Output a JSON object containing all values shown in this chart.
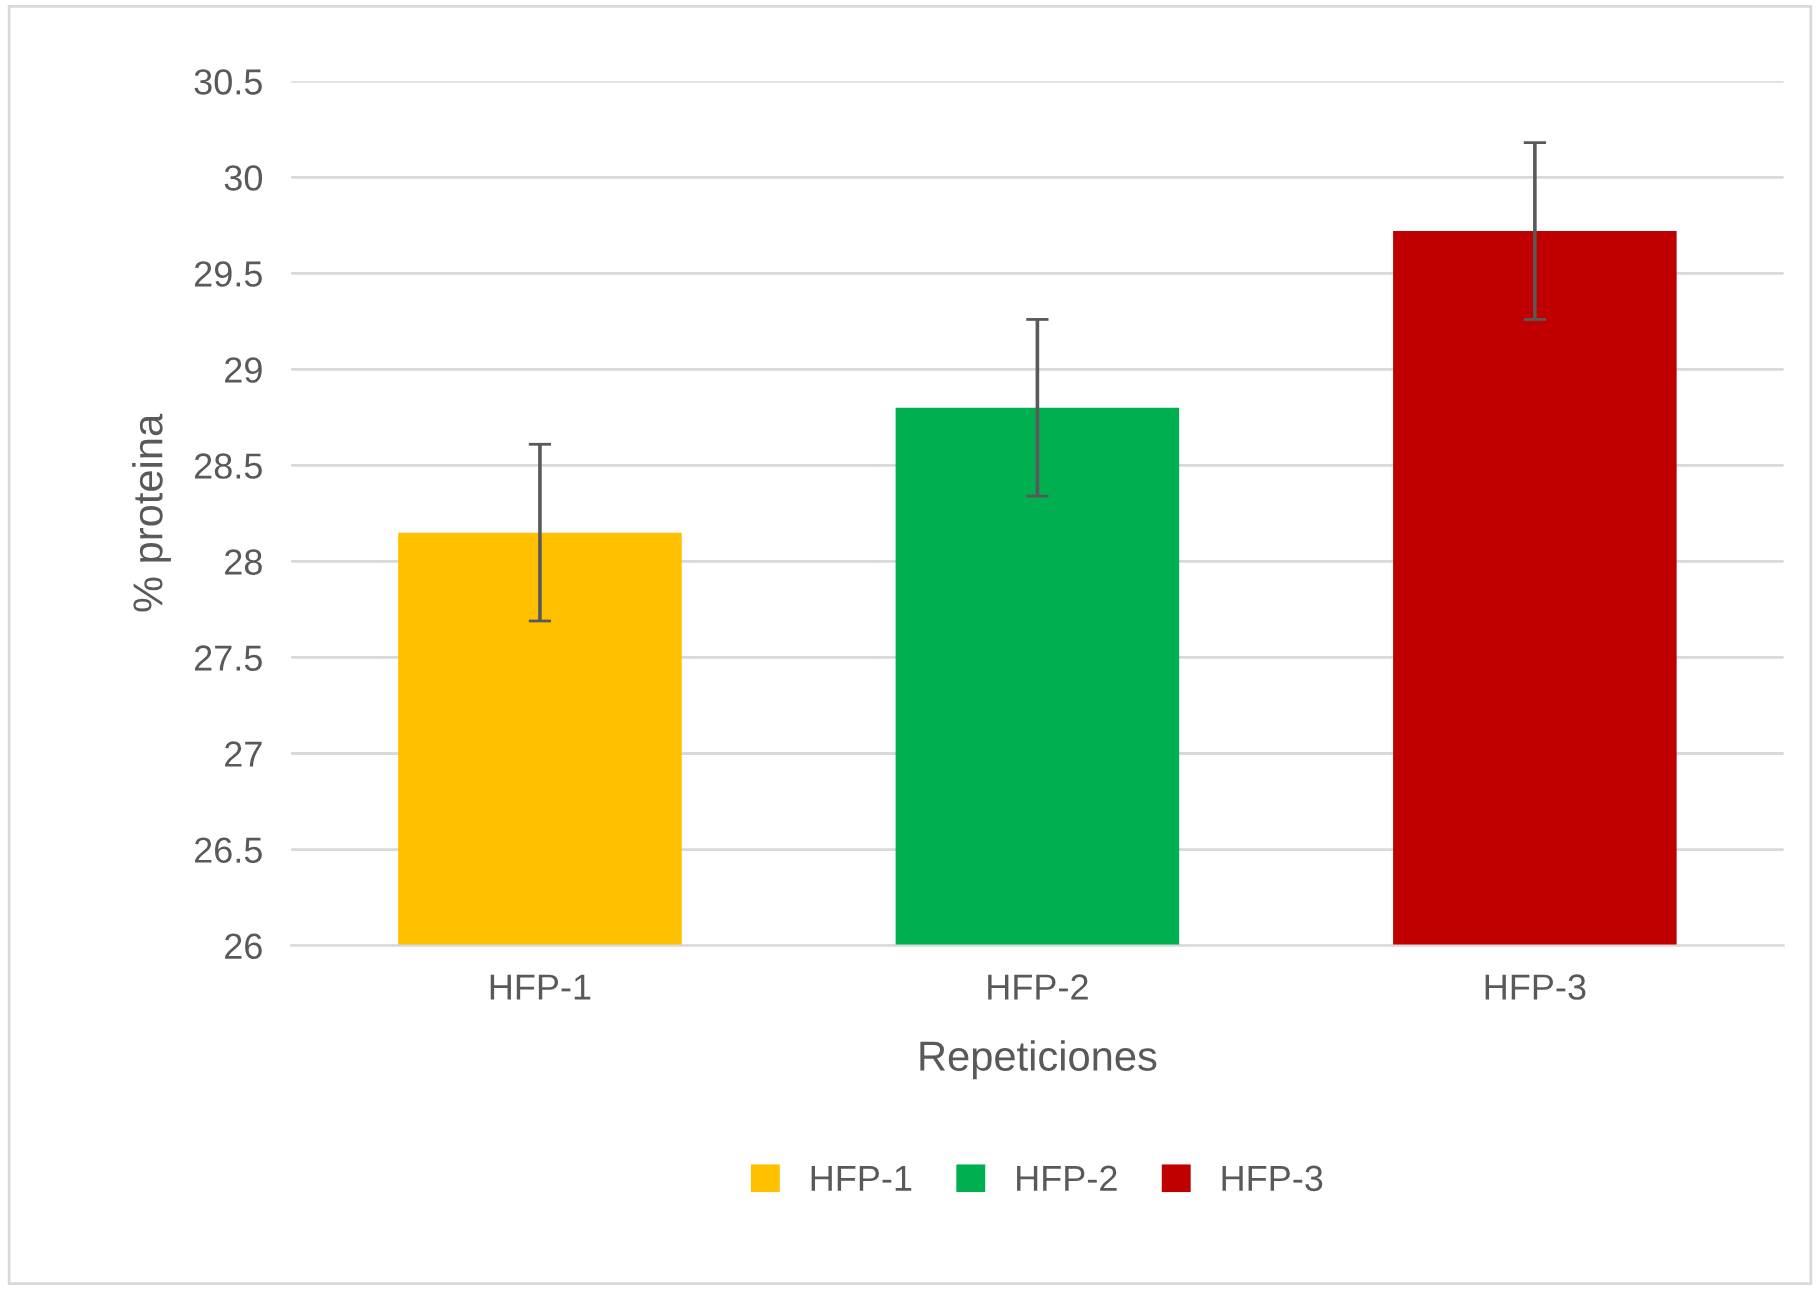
{
  "chart_data": {
    "type": "bar",
    "xlabel": "Repeticiones",
    "ylabel": "% proteina",
    "categories": [
      "HFP-1",
      "HFP-2",
      "HFP-3"
    ],
    "series": [
      {
        "name": "HFP-1",
        "color": "#ffc000",
        "values": [
          28.15,
          null,
          null
        ],
        "errors": [
          0.46,
          null,
          null
        ]
      },
      {
        "name": "HFP-2",
        "color": "#00b050",
        "values": [
          null,
          28.8,
          null
        ],
        "errors": [
          null,
          0.46,
          null
        ]
      },
      {
        "name": "HFP-3",
        "color": "#c00000",
        "values": [
          null,
          null,
          29.72
        ],
        "errors": [
          null,
          null,
          0.46
        ]
      }
    ],
    "ylim": [
      26,
      30.5
    ],
    "yticks": [
      26,
      26.5,
      27,
      27.5,
      28,
      28.5,
      29,
      29.5,
      30,
      30.5
    ],
    "grid": "y",
    "legend": "bottom"
  }
}
